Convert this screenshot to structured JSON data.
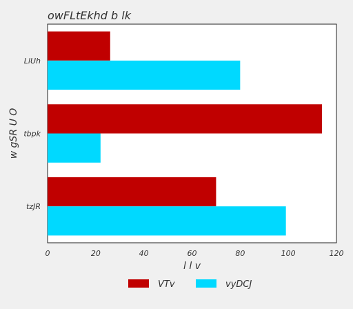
{
  "chart_data": {
    "type": "bar",
    "orientation": "horizontal",
    "title": "owFLtEkhd b lk",
    "xlabel": "l l v",
    "ylabel": "w  gSR U O",
    "categories": [
      "LlUh",
      "tbpk",
      "tzJR"
    ],
    "series": [
      {
        "name": "VTv",
        "color": "#c00000",
        "values": [
          26,
          114,
          70
        ]
      },
      {
        "name": "vyDCJ",
        "color": "#00d9ff",
        "values": [
          80,
          22,
          99
        ]
      }
    ],
    "xlim": [
      0,
      120
    ],
    "xticks": [
      "0",
      "20",
      "40",
      "60",
      "80",
      "100",
      "120"
    ],
    "grid": false,
    "legend": "bottom"
  }
}
